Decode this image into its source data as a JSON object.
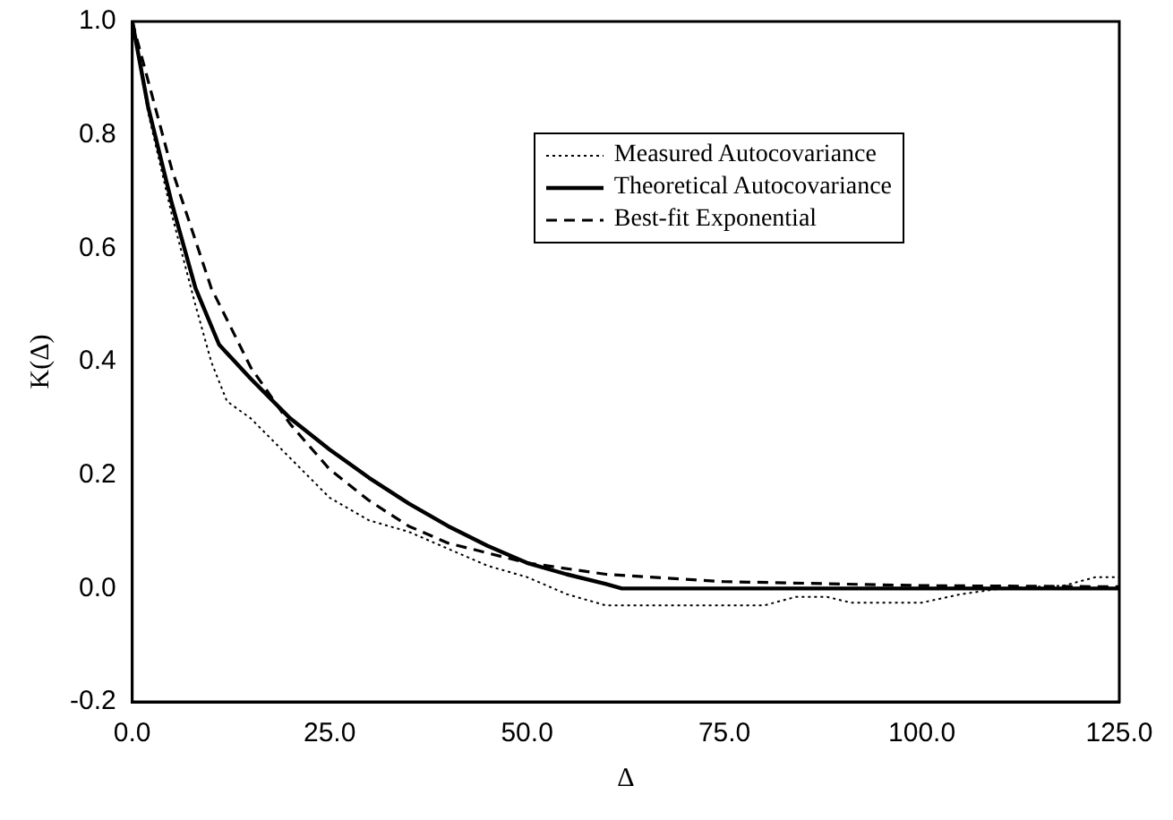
{
  "chart_data": {
    "type": "line",
    "xlabel": "Δ",
    "ylabel": "K(Δ)",
    "xlim": [
      0,
      125
    ],
    "ylim": [
      -0.2,
      1.0
    ],
    "xticks": [
      {
        "value": 0,
        "label": "0.0"
      },
      {
        "value": 25,
        "label": "25.0"
      },
      {
        "value": 50,
        "label": "50.0"
      },
      {
        "value": 75,
        "label": "75.0"
      },
      {
        "value": 100,
        "label": "100.0"
      },
      {
        "value": 125,
        "label": "125.0"
      }
    ],
    "yticks": [
      {
        "value": -0.2,
        "label": "-0.2"
      },
      {
        "value": 0,
        "label": "0.0"
      },
      {
        "value": 0.2,
        "label": "0.2"
      },
      {
        "value": 0.4,
        "label": "0.4"
      },
      {
        "value": 0.6,
        "label": "0.6"
      },
      {
        "value": 0.8,
        "label": "0.8"
      },
      {
        "value": 1.0,
        "label": "1.0"
      }
    ],
    "grid": false,
    "legend": "top right",
    "marker": "none",
    "series": [
      {
        "name": "Measured Autocovariance",
        "color": "#000000",
        "line_style": "dotted",
        "x": [
          0,
          2,
          5,
          8,
          10,
          12,
          15,
          20,
          25,
          30,
          35,
          40,
          45,
          50,
          55,
          60,
          70,
          80,
          84,
          88,
          91,
          100,
          105,
          110,
          118,
          122,
          125
        ],
        "values": [
          1.0,
          0.84,
          0.66,
          0.5,
          0.4,
          0.33,
          0.3,
          0.23,
          0.16,
          0.12,
          0.1,
          0.07,
          0.04,
          0.02,
          -0.01,
          -0.03,
          -0.03,
          -0.03,
          -0.015,
          -0.015,
          -0.025,
          -0.025,
          -0.01,
          0.0,
          0.005,
          0.02,
          0.02
        ]
      },
      {
        "name": "Theoretical Autocovariance",
        "color": "#000000",
        "line_style": "solid",
        "x": [
          0,
          2,
          5,
          8,
          11,
          15,
          20,
          25,
          30,
          35,
          40,
          45,
          50,
          55,
          60,
          62,
          125
        ],
        "values": [
          1.0,
          0.85,
          0.68,
          0.53,
          0.43,
          0.37,
          0.3,
          0.245,
          0.195,
          0.15,
          0.11,
          0.075,
          0.045,
          0.025,
          0.008,
          0.0,
          0.0
        ]
      },
      {
        "name": "Best-fit Exponential",
        "color": "#000000",
        "line_style": "dashed",
        "x": [
          0,
          5,
          10,
          15,
          20,
          25,
          30,
          35,
          40,
          50,
          60,
          75,
          100,
          125
        ],
        "values": [
          1.0,
          0.74,
          0.53,
          0.39,
          0.29,
          0.21,
          0.155,
          0.11,
          0.08,
          0.045,
          0.025,
          0.012,
          0.005,
          0.003
        ]
      }
    ]
  }
}
